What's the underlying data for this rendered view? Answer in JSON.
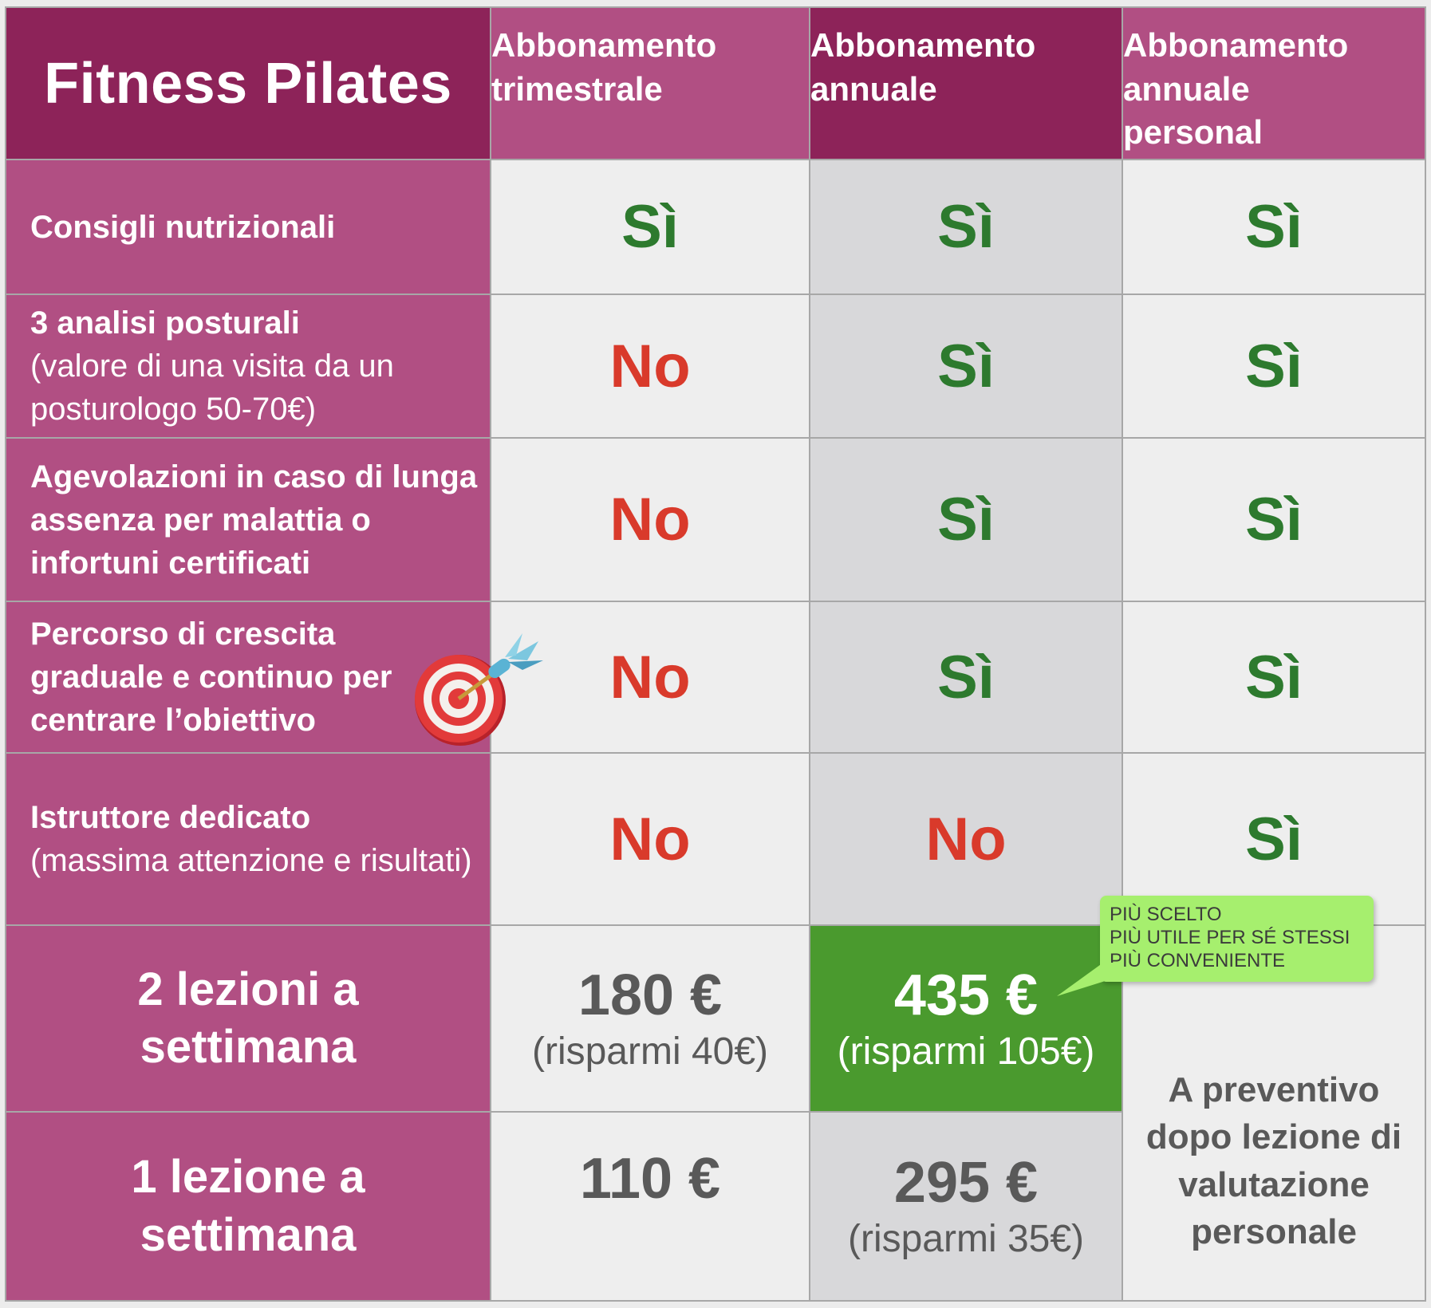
{
  "header": {
    "title": "Fitness Pilates",
    "plans": [
      [
        "Abbonamento",
        "trimestrale"
      ],
      [
        "Abbonamento",
        "annuale"
      ],
      [
        "Abbonamento",
        "annuale",
        "personal"
      ]
    ]
  },
  "features": [
    {
      "bold": "Consigli nutrizionali",
      "sub": "",
      "values": [
        "Sì",
        "Sì",
        "Sì"
      ]
    },
    {
      "bold": "3 analisi posturali",
      "sub": "(valore di una visita da un posturologo 50-70€)",
      "values": [
        "No",
        "Sì",
        "Sì"
      ]
    },
    {
      "bold": "Agevolazioni in caso di lunga assenza per malattia o infortuni certificati",
      "sub": "",
      "values": [
        "No",
        "Sì",
        "Sì"
      ]
    },
    {
      "bold": "Percorso di crescita graduale e continuo per centrare l’obiettivo",
      "sub": "",
      "values": [
        "No",
        "Sì",
        "Sì"
      ]
    },
    {
      "bold": "Istruttore dedicato",
      "sub": "(massima attenzione e risultati)",
      "values": [
        "No",
        "No",
        "Sì"
      ]
    }
  ],
  "pricing": {
    "two_per_week": {
      "label_line1": "2 lezioni a",
      "label_line2": "settimana",
      "quarterly": {
        "amount": "180 €",
        "saving": "(risparmi 40€)"
      },
      "annual": {
        "amount": "435 €",
        "saving": "(risparmi 105€)"
      }
    },
    "one_per_week": {
      "label_line1": "1 lezione a",
      "label_line2": "settimana",
      "quarterly": {
        "amount": "110 €",
        "saving": ""
      },
      "annual": {
        "amount": "295 €",
        "saving": "(risparmi 35€)"
      }
    },
    "personal_note": [
      "A preventivo",
      "dopo lezione di",
      "valutazione",
      "personale"
    ]
  },
  "badge": {
    "lines": [
      "PIÙ SCELTO",
      "PIÙ UTILE PER SÉ STESSI",
      "PIÙ CONVENIENTE"
    ]
  },
  "icons": {
    "target": "target-dart-icon"
  },
  "colors": {
    "header_dark": "#8d2359",
    "header_mid": "#b14f83",
    "yes": "#2d7a2e",
    "no": "#d93a2b",
    "highlight": "#4a9a2e",
    "badge": "#a6ef6e"
  }
}
